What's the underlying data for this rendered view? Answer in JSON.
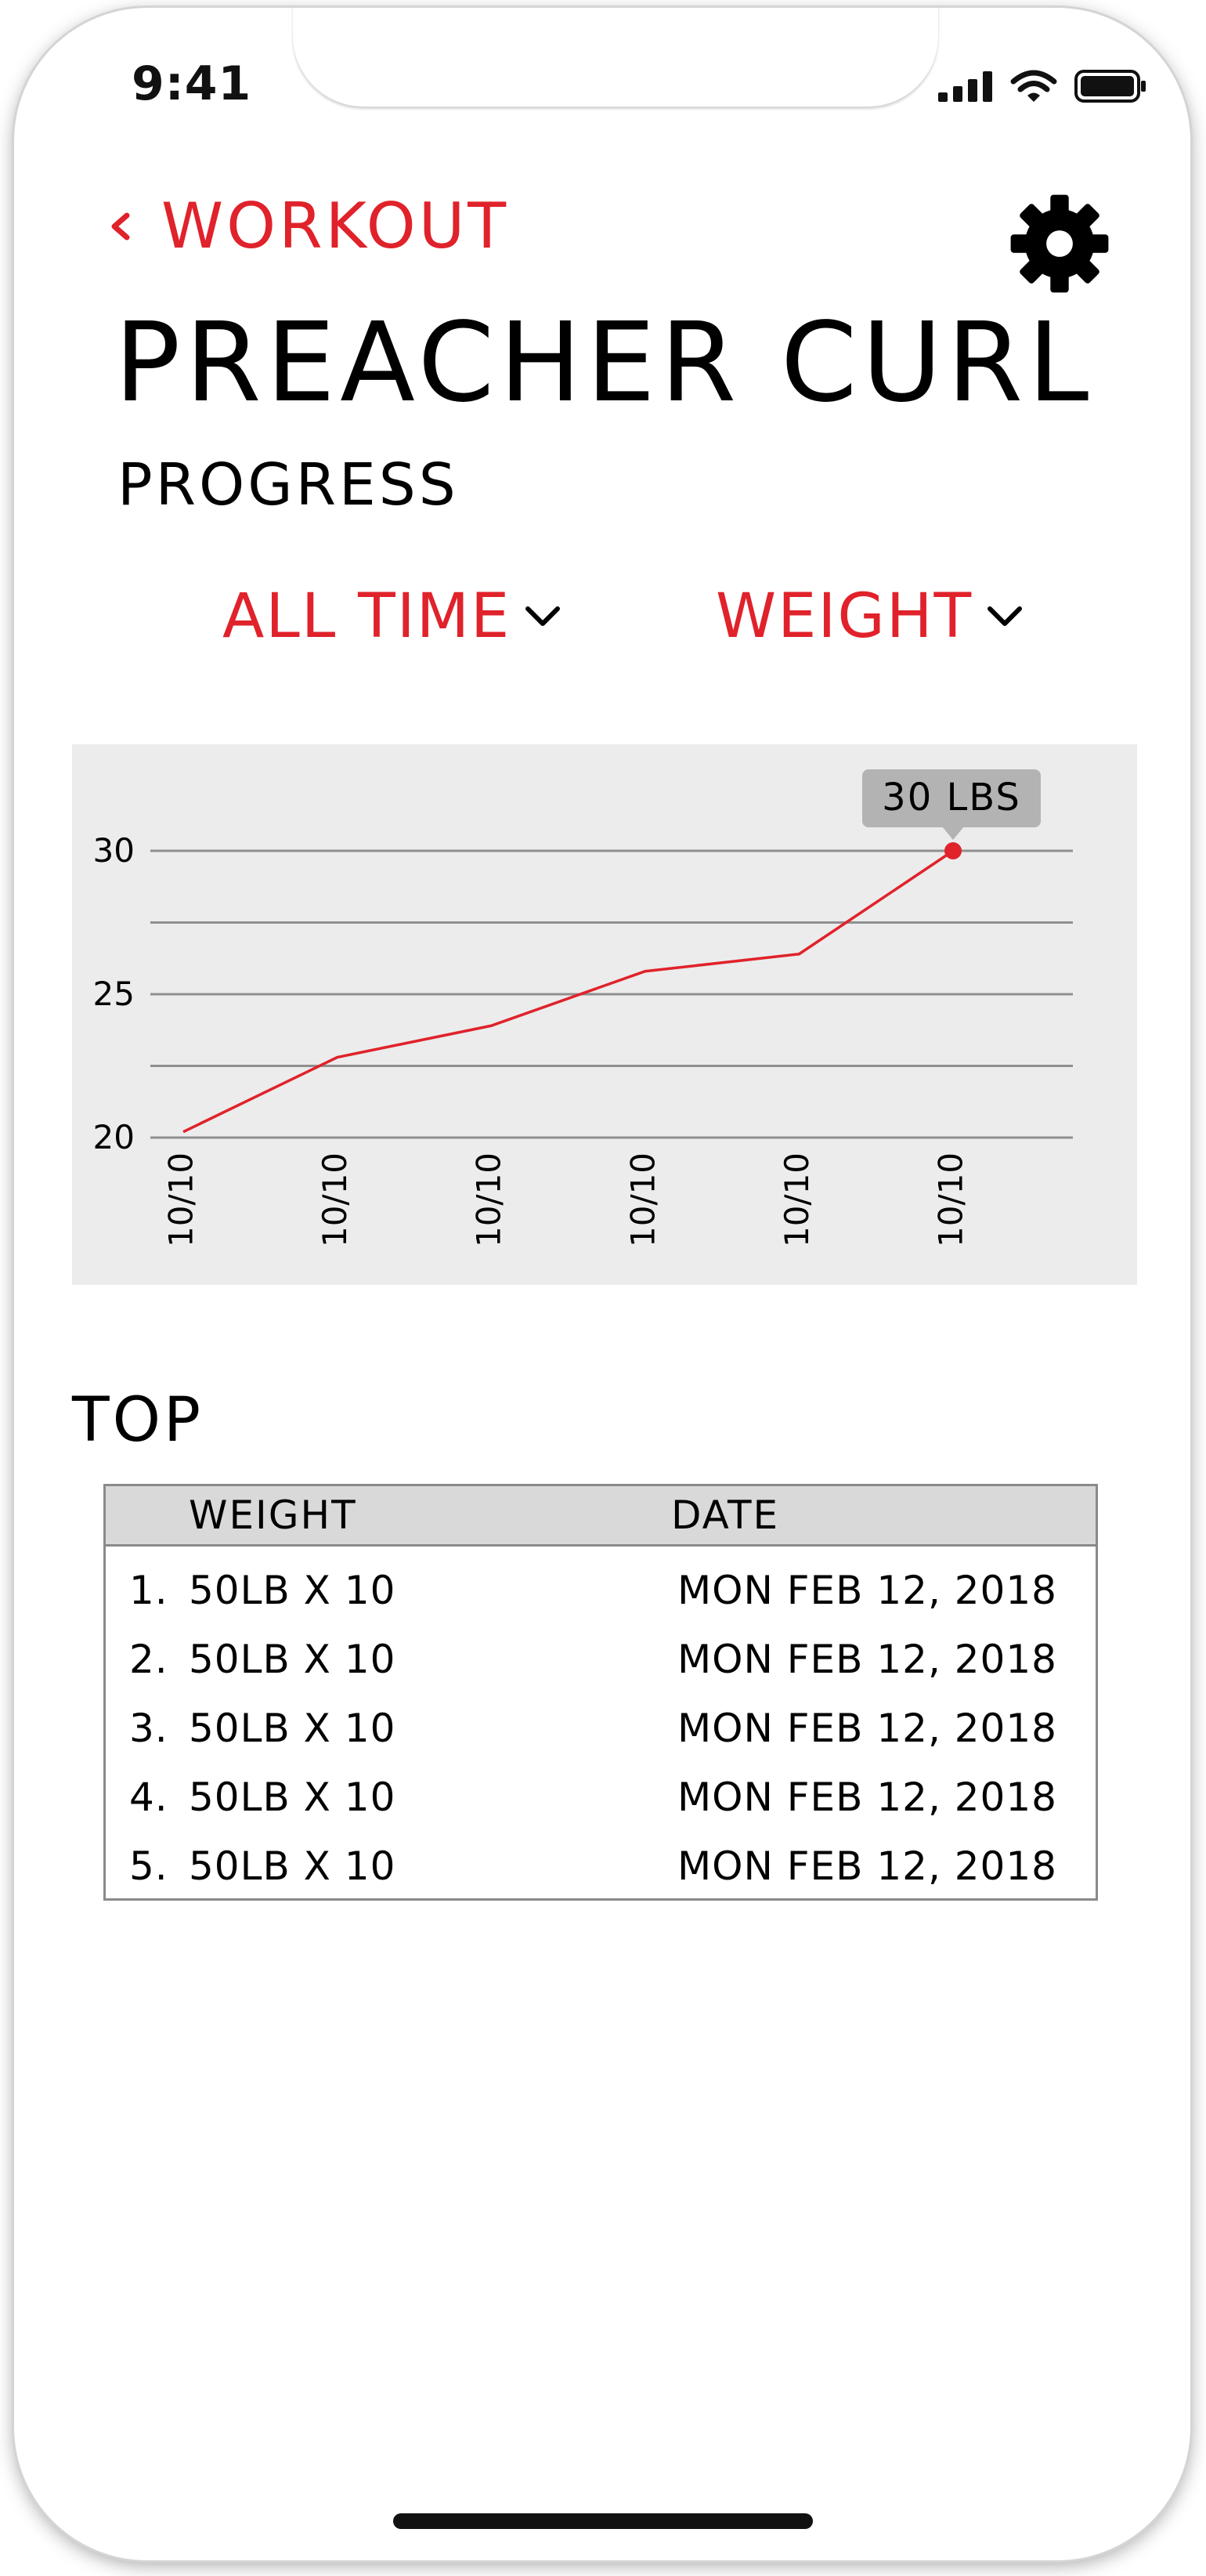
{
  "status": {
    "time": "9:41",
    "icons": [
      "cellular-signal-icon",
      "wifi-icon",
      "battery-icon"
    ]
  },
  "nav": {
    "back_label": "WORKOUT",
    "settings_icon": "gear-icon"
  },
  "header": {
    "title": "PREACHER CURL",
    "subtitle": "PROGRESS"
  },
  "filters": {
    "range_label": "ALL TIME",
    "metric_label": "WEIGHT"
  },
  "colors": {
    "accent": "#e0222b",
    "chart_bg": "#ececec",
    "gridline": "#8f8f8f",
    "tooltip_bg": "#b3b3b3"
  },
  "chart_data": {
    "type": "line",
    "title": "",
    "xlabel": "",
    "ylabel": "",
    "categories": [
      "10/10",
      "10/10",
      "10/10",
      "10/10",
      "10/10",
      "10/10"
    ],
    "series": [
      {
        "values": [
          20.2,
          22.8,
          23.9,
          25.8,
          26.4,
          30.0
        ]
      }
    ],
    "y_ticks": [
      "30",
      "25",
      "20"
    ],
    "ylim": [
      20,
      30
    ],
    "grid": true,
    "highlight": {
      "index": 5,
      "label": "30 LBS"
    }
  },
  "top": {
    "heading": "TOP",
    "columns": {
      "weight": "WEIGHT",
      "date": "DATE"
    },
    "rows": [
      {
        "rank": "1.",
        "weight": "50LB X 10",
        "date": "MON FEB 12, 2018"
      },
      {
        "rank": "2.",
        "weight": "50LB X 10",
        "date": "MON FEB 12, 2018"
      },
      {
        "rank": "3.",
        "weight": "50LB X 10",
        "date": "MON FEB 12, 2018"
      },
      {
        "rank": "4.",
        "weight": "50LB X 10",
        "date": "MON FEB 12, 2018"
      },
      {
        "rank": "5.",
        "weight": "50LB X 10",
        "date": "MON FEB 12, 2018"
      }
    ]
  }
}
